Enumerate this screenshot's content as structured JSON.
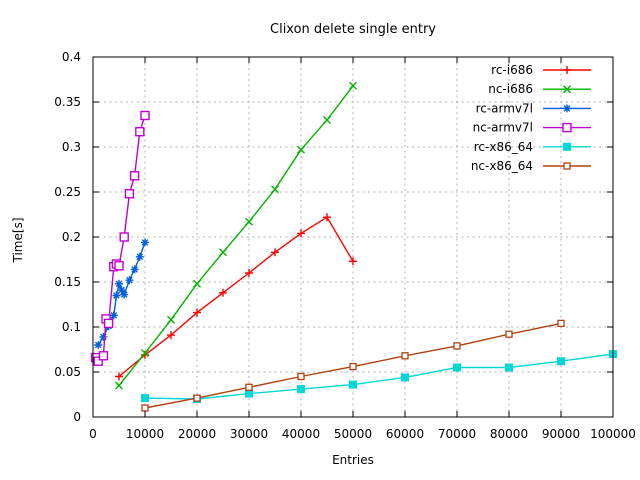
{
  "chart_data": {
    "type": "line",
    "title": "Clixon delete single entry",
    "xlabel": "Entries",
    "ylabel": "Time[s]",
    "xlim": [
      0,
      100000
    ],
    "ylim": [
      0,
      0.4
    ],
    "xticks": [
      0,
      10000,
      20000,
      30000,
      40000,
      50000,
      60000,
      70000,
      80000,
      90000,
      100000
    ],
    "xtick_labels": [
      "0",
      "10000",
      "20000",
      "30000",
      "40000",
      "50000",
      "60000",
      "70000",
      "80000",
      "90000",
      "100000"
    ],
    "yticks": [
      0,
      0.05,
      0.1,
      0.15,
      0.2,
      0.25,
      0.3,
      0.35,
      0.4
    ],
    "ytick_labels": [
      "0",
      "0.05",
      "0.1",
      "0.15",
      "0.2",
      "0.25",
      "0.3",
      "0.35",
      "0.4"
    ],
    "grid": true,
    "legend_position": "inside-top-right",
    "background_color": "#ffffff",
    "grid_color": "#b0b0b0",
    "axis_color": "#000000",
    "text_color": "#000000",
    "series": [
      {
        "name": "rc-i686",
        "color": "#ff0000",
        "marker": "plus",
        "points": [
          [
            5000,
            0.045
          ],
          [
            10000,
            0.069
          ],
          [
            15000,
            0.091
          ],
          [
            20000,
            0.116
          ],
          [
            25000,
            0.138
          ],
          [
            30000,
            0.16
          ],
          [
            35000,
            0.183
          ],
          [
            40000,
            0.204
          ],
          [
            45000,
            0.222
          ],
          [
            50000,
            0.173
          ]
        ]
      },
      {
        "name": "nc-i686",
        "color": "#00b400",
        "marker": "cross",
        "points": [
          [
            5000,
            0.035
          ],
          [
            10000,
            0.071
          ],
          [
            15000,
            0.108
          ],
          [
            20000,
            0.148
          ],
          [
            25000,
            0.183
          ],
          [
            30000,
            0.217
          ],
          [
            35000,
            0.253
          ],
          [
            40000,
            0.297
          ],
          [
            45000,
            0.33
          ],
          [
            50000,
            0.368
          ]
        ]
      },
      {
        "name": "rc-armv7l",
        "color": "#0060d8",
        "marker": "asterisk",
        "points": [
          [
            1000,
            0.08
          ],
          [
            2000,
            0.089
          ],
          [
            3000,
            0.101
          ],
          [
            4000,
            0.113
          ],
          [
            4500,
            0.135
          ],
          [
            5000,
            0.148
          ],
          [
            5500,
            0.141
          ],
          [
            6000,
            0.136
          ],
          [
            7000,
            0.152
          ],
          [
            8000,
            0.164
          ],
          [
            9000,
            0.178
          ],
          [
            10000,
            0.194
          ]
        ]
      },
      {
        "name": "nc-armv7l",
        "color": "#c000d0",
        "marker": "square-open",
        "points": [
          [
            500,
            0.066
          ],
          [
            1000,
            0.062
          ],
          [
            2000,
            0.068
          ],
          [
            2500,
            0.109
          ],
          [
            3000,
            0.104
          ],
          [
            4000,
            0.167
          ],
          [
            4500,
            0.17
          ],
          [
            5000,
            0.168
          ],
          [
            6000,
            0.2
          ],
          [
            7000,
            0.248
          ],
          [
            8000,
            0.268
          ],
          [
            9000,
            0.317
          ],
          [
            10000,
            0.335
          ]
        ]
      },
      {
        "name": "rc-x86_64",
        "color": "#00d8d8",
        "marker": "square-filled",
        "points": [
          [
            10000,
            0.021
          ],
          [
            20000,
            0.02
          ],
          [
            30000,
            0.026
          ],
          [
            40000,
            0.031
          ],
          [
            50000,
            0.036
          ],
          [
            60000,
            0.044
          ],
          [
            70000,
            0.055
          ],
          [
            80000,
            0.055
          ],
          [
            90000,
            0.062
          ],
          [
            100000,
            0.07
          ]
        ]
      },
      {
        "name": "nc-x86_64",
        "color": "#b04010",
        "marker": "square-open-small",
        "points": [
          [
            10000,
            0.01
          ],
          [
            20000,
            0.021
          ],
          [
            30000,
            0.033
          ],
          [
            40000,
            0.045
          ],
          [
            50000,
            0.056
          ],
          [
            60000,
            0.068
          ],
          [
            70000,
            0.079
          ],
          [
            80000,
            0.092
          ],
          [
            90000,
            0.104
          ]
        ]
      }
    ]
  }
}
